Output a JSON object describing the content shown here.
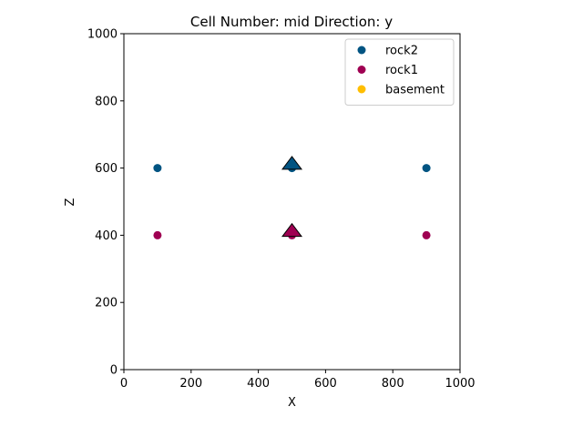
{
  "chart_data": {
    "type": "scatter",
    "title": "Cell Number: mid Direction: y",
    "xlabel": "X",
    "ylabel": "Z",
    "xlim": [
      0,
      1000
    ],
    "ylim": [
      0,
      1000
    ],
    "xticks": [
      0,
      200,
      400,
      600,
      800,
      1000
    ],
    "yticks": [
      0,
      200,
      400,
      600,
      800,
      1000
    ],
    "grid": false,
    "legend_position": "top-right",
    "series": [
      {
        "name": "rock2",
        "color": "#015482",
        "points": [
          [
            100,
            600
          ],
          [
            500,
            600
          ],
          [
            900,
            600
          ]
        ]
      },
      {
        "name": "rock1",
        "color": "#9f0052",
        "points": [
          [
            100,
            400
          ],
          [
            500,
            400
          ],
          [
            900,
            400
          ]
        ]
      },
      {
        "name": "basement",
        "color": "#ffbe00",
        "points": []
      }
    ],
    "orientations": [
      {
        "x": 500,
        "y": 610,
        "color": "#015482",
        "marker": "triangle"
      },
      {
        "x": 500,
        "y": 410,
        "color": "#9f0052",
        "marker": "triangle"
      }
    ]
  }
}
